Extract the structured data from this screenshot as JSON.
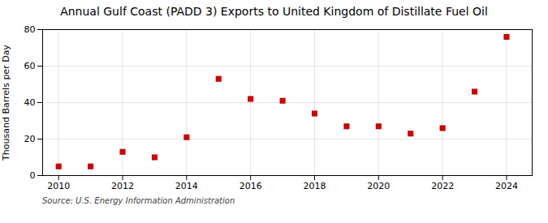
{
  "chart_data": {
    "type": "scatter",
    "title": "Annual Gulf Coast (PADD 3) Exports to United Kingdom of Distillate Fuel Oil",
    "ylabel": "Thousand Barrels per Day",
    "source": "Source: U.S. Energy Information Administration",
    "x": [
      2010,
      2011,
      2012,
      2013,
      2014,
      2015,
      2016,
      2017,
      2018,
      2019,
      2020,
      2021,
      2022,
      2023,
      2024
    ],
    "values": [
      5.0,
      5.0,
      13.0,
      10.0,
      21.0,
      53.0,
      42.0,
      41.0,
      34.0,
      27.0,
      27.0,
      23.0,
      26.0,
      46.0,
      76.0
    ],
    "color": "#cc0000",
    "marker": "square",
    "xlim": [
      2009.5,
      2024.8
    ],
    "xticks": [
      2010,
      2012,
      2014,
      2016,
      2018,
      2020,
      2022,
      2024
    ],
    "ylim": [
      0,
      80
    ],
    "yticks": [
      0,
      20,
      40,
      60,
      80
    ],
    "grid": true
  }
}
